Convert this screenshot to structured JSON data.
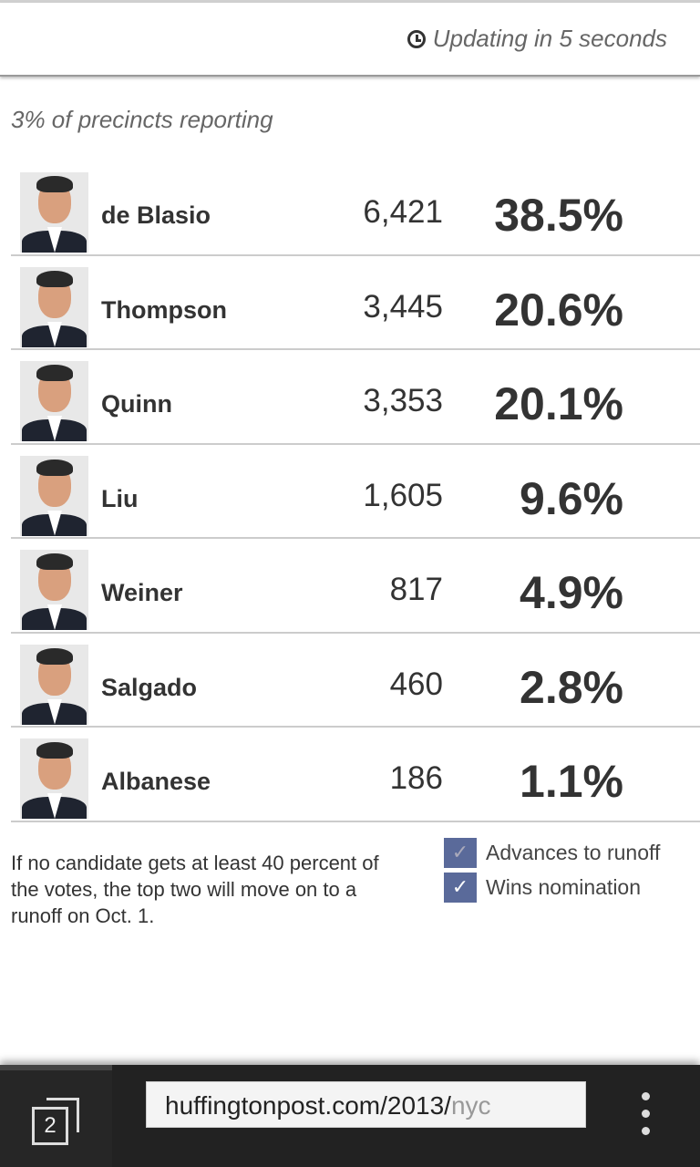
{
  "header": {
    "updating": "Updating in 5 seconds",
    "icon": "clock-icon"
  },
  "precincts": "3% of precincts reporting",
  "candidates": [
    {
      "name": "de Blasio",
      "votes": "6,421",
      "percent": "38.5%"
    },
    {
      "name": "Thompson",
      "votes": "3,445",
      "percent": "20.6%"
    },
    {
      "name": "Quinn",
      "votes": "3,353",
      "percent": "20.1%"
    },
    {
      "name": "Liu",
      "votes": "1,605",
      "percent": "9.6%"
    },
    {
      "name": "Weiner",
      "votes": "817",
      "percent": "4.9%"
    },
    {
      "name": "Salgado",
      "votes": "460",
      "percent": "2.8%"
    },
    {
      "name": "Albanese",
      "votes": "186",
      "percent": "1.1%"
    }
  ],
  "note": "If no candidate gets at least 40 percent of the votes, the top two will move on to a runoff on Oct. 1.",
  "legend": {
    "runoff": "Advances to runoff",
    "wins": "Wins nomination",
    "check": "✓",
    "color": "#5a6a9a"
  },
  "browser": {
    "tab_count": "2",
    "url_main": "huffingtonpost.com/2013/",
    "url_fade": "nyc"
  }
}
